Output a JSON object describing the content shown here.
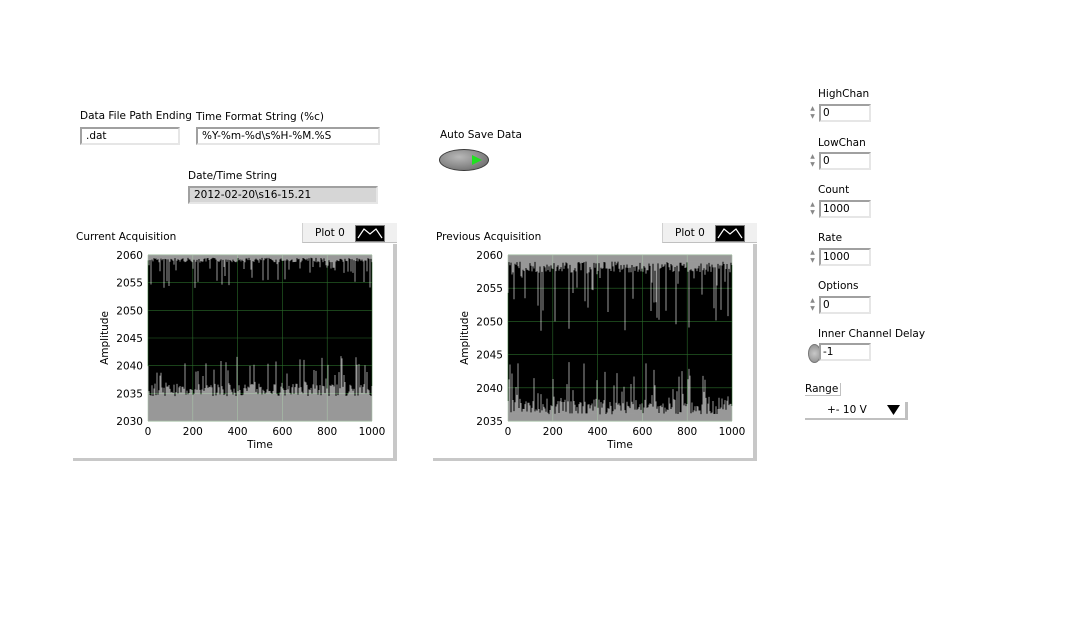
{
  "controls": {
    "data_file_path_ending": {
      "label": "Data File Path Ending",
      "value": ".dat"
    },
    "time_format_string": {
      "label": "Time Format String (%c)",
      "value": "%Y-%m-%d\\s%H-%M.%S"
    },
    "datetime_string": {
      "label": "Date/Time String",
      "value": "2012-02-20\\s16-15.21"
    },
    "auto_save": {
      "label": "Auto Save Data"
    },
    "high_chan": {
      "label": "HighChan",
      "value": "0"
    },
    "low_chan": {
      "label": "LowChan",
      "value": "0"
    },
    "count": {
      "label": "Count",
      "value": "1000"
    },
    "rate": {
      "label": "Rate",
      "value": "1000"
    },
    "options": {
      "label": "Options",
      "value": "0"
    },
    "inner_channel_delay": {
      "label": "Inner Channel Delay",
      "value": "-1"
    },
    "range": {
      "label": "Range",
      "value": "+- 10 V"
    }
  },
  "chart_data": [
    {
      "type": "line",
      "title": "Current Acquisition",
      "legend": "Plot 0",
      "xlabel": "Time",
      "ylabel": "Amplitude",
      "xlim": [
        0,
        1000
      ],
      "ylim": [
        2030,
        2060
      ],
      "x_ticks": [
        "0",
        "200",
        "400",
        "600",
        "800",
        "1000"
      ],
      "y_ticks": [
        "2060",
        "2055",
        "2050",
        "2045",
        "2040",
        "2035",
        "2030"
      ],
      "grid": true,
      "background": "#000000",
      "line_color": "#ffffff",
      "series": [
        {
          "bands": [
            {
              "base": 2059.5,
              "min": 2054,
              "max": 2060
            },
            {
              "base": 2034.5,
              "min": 2030,
              "max": 2042
            }
          ]
        }
      ]
    },
    {
      "type": "line",
      "title": "Previous Acquisition",
      "legend": "Plot 0",
      "xlabel": "Time",
      "ylabel": "Amplitude",
      "xlim": [
        0,
        1000
      ],
      "ylim": [
        2035,
        2060
      ],
      "x_ticks": [
        "0",
        "200",
        "400",
        "600",
        "800",
        "1000"
      ],
      "y_ticks": [
        "2060",
        "2055",
        "2050",
        "2045",
        "2040",
        "2035"
      ],
      "grid": true,
      "background": "#000000",
      "line_color": "#ffffff",
      "series": [
        {
          "bands": [
            {
              "base": 2059.0,
              "min": 2048,
              "max": 2060
            },
            {
              "base": 2036.0,
              "min": 2035,
              "max": 2044
            }
          ]
        }
      ]
    }
  ]
}
